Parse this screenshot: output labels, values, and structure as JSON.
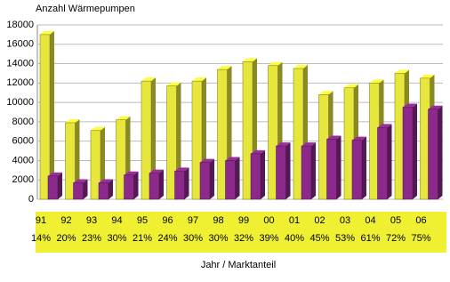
{
  "chart_data": {
    "type": "bar3d",
    "title": "Anzahl Wärmepumpen",
    "x_label": "Jahr / Marktanteil",
    "categories": [
      "91",
      "92",
      "93",
      "94",
      "95",
      "96",
      "97",
      "98",
      "99",
      "00",
      "01",
      "02",
      "03",
      "04",
      "05",
      "06"
    ],
    "category_shares": [
      "14%",
      "20%",
      "23%",
      "30%",
      "21%",
      "24%",
      "30%",
      "30%",
      "32%",
      "39%",
      "40%",
      "45%",
      "53%",
      "61%",
      "72%",
      "75%"
    ],
    "series": [
      {
        "color": "#e6e63c",
        "values": [
          17000,
          7900,
          7100,
          8200,
          12200,
          11700,
          12200,
          13400,
          14200,
          13800,
          13500,
          10800,
          11500,
          12000,
          13000,
          12500
        ]
      },
      {
        "color": "#8c2a8c",
        "values": [
          2400,
          1700,
          1700,
          2500,
          2700,
          2900,
          3800,
          4000,
          4700,
          5500,
          5500,
          6200,
          6100,
          7400,
          9500,
          9300
        ]
      }
    ],
    "ylim": [
      0,
      18000
    ],
    "yticks": [
      0,
      2000,
      4000,
      6000,
      8000,
      10000,
      12000,
      14000,
      16000,
      18000
    ],
    "grid": true
  }
}
